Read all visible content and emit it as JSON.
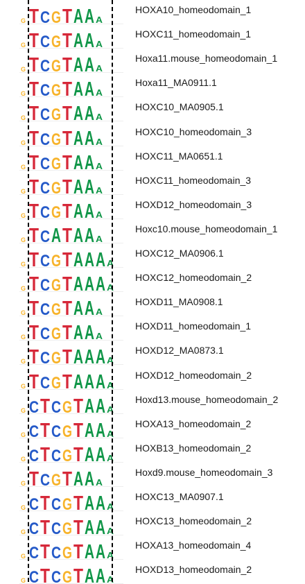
{
  "figure": {
    "colors": {
      "A": "#109648",
      "C": "#255ac8",
      "G": "#f7b32b",
      "T": "#d62839",
      "baseline": "#e46a6a"
    },
    "motifs": [
      {
        "name": "HOXA10_homeodomain_1",
        "logo": "TCGTAAA"
      },
      {
        "name": "HOXC11_homeodomain_1",
        "logo": "TCGTAAA"
      },
      {
        "name": "Hoxa11.mouse_homeodomain_1",
        "logo": "TCGTAAA"
      },
      {
        "name": "Hoxa11_MA0911.1",
        "logo": "TCGTAAA"
      },
      {
        "name": "HOXC10_MA0905.1",
        "logo": "TCGTAAA"
      },
      {
        "name": "HOXC10_homeodomain_3",
        "logo": "TCGTAAA"
      },
      {
        "name": "HOXC11_MA0651.1",
        "logo": "TCGTAAA"
      },
      {
        "name": "HOXC11_homeodomain_3",
        "logo": "TCGTAAA"
      },
      {
        "name": "HOXD12_homeodomain_3",
        "logo": "TCGTAAA"
      },
      {
        "name": "Hoxc10.mouse_homeodomain_1",
        "logo": "TCATAAA"
      },
      {
        "name": "HOXC12_MA0906.1",
        "logo": "TCGTAAAA"
      },
      {
        "name": "HOXC12_homeodomain_2",
        "logo": "TCGTAAAA"
      },
      {
        "name": "HOXD11_MA0908.1",
        "logo": "TCGTAAA"
      },
      {
        "name": "HOXD11_homeodomain_1",
        "logo": "TCGTAAA"
      },
      {
        "name": "HOXD12_MA0873.1",
        "logo": "TCGTAAAA"
      },
      {
        "name": "HOXD12_homeodomain_2",
        "logo": "TCGTAAAA"
      },
      {
        "name": "Hoxd13.mouse_homeodomain_2",
        "logo": "CTCGTAAA"
      },
      {
        "name": "HOXA13_homeodomain_2",
        "logo": "CTCGTAAA"
      },
      {
        "name": "HOXB13_homeodomain_2",
        "logo": "CTCGTAAA"
      },
      {
        "name": "Hoxd9.mouse_homeodomain_3",
        "logo": "TCGTAAA"
      },
      {
        "name": "HOXC13_MA0907.1",
        "logo": "CTCGTAAA"
      },
      {
        "name": "HOXC13_homeodomain_2",
        "logo": "CTCGTAAA"
      },
      {
        "name": "HOXA13_homeodomain_4",
        "logo": "CTCGTAAA"
      },
      {
        "name": "HOXD13_homeodomain_2",
        "logo": "CTCGTAAA"
      }
    ]
  }
}
